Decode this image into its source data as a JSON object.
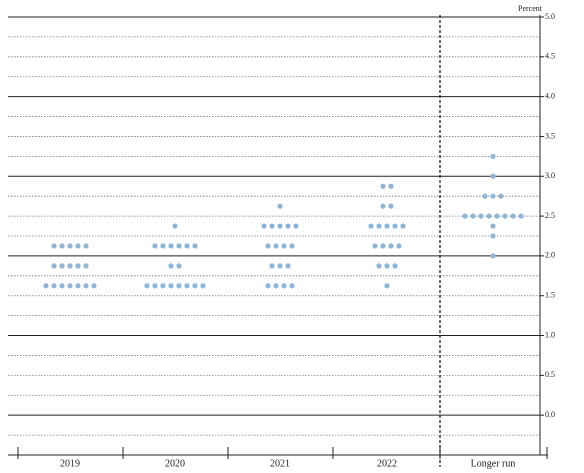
{
  "chart_data": {
    "type": "dot",
    "y_label": "Percent",
    "categories": [
      "2019",
      "2020",
      "2021",
      "2022",
      "Longer run"
    ],
    "dots": [
      [
        {
          "rate": 2.125,
          "count": 5
        },
        {
          "rate": 1.875,
          "count": 5
        },
        {
          "rate": 1.625,
          "count": 7
        }
      ],
      [
        {
          "rate": 2.375,
          "count": 1
        },
        {
          "rate": 2.125,
          "count": 6
        },
        {
          "rate": 1.875,
          "count": 2
        },
        {
          "rate": 1.625,
          "count": 8
        }
      ],
      [
        {
          "rate": 2.625,
          "count": 1
        },
        {
          "rate": 2.375,
          "count": 5
        },
        {
          "rate": 2.125,
          "count": 4
        },
        {
          "rate": 1.875,
          "count": 3
        },
        {
          "rate": 1.625,
          "count": 4
        }
      ],
      [
        {
          "rate": 2.875,
          "count": 2
        },
        {
          "rate": 2.625,
          "count": 2
        },
        {
          "rate": 2.375,
          "count": 5
        },
        {
          "rate": 2.125,
          "count": 4
        },
        {
          "rate": 1.875,
          "count": 3
        },
        {
          "rate": 1.625,
          "count": 1
        }
      ],
      [
        {
          "rate": 3.25,
          "count": 1
        },
        {
          "rate": 3.0,
          "count": 1
        },
        {
          "rate": 2.75,
          "count": 3
        },
        {
          "rate": 2.5,
          "count": 8
        },
        {
          "rate": 2.375,
          "count": 1
        },
        {
          "rate": 2.25,
          "count": 1
        },
        {
          "rate": 2.0,
          "count": 1
        }
      ]
    ],
    "color": "#8fb4d9",
    "ylim": [
      -0.5,
      5.0
    ],
    "yticks": [
      {
        "value": 0,
        "label": "0.0"
      },
      {
        "value": 0.5,
        "label": "0.5"
      },
      {
        "value": 1,
        "label": "1.0"
      },
      {
        "value": 1.5,
        "label": "1.5"
      },
      {
        "value": 2,
        "label": "2.0"
      },
      {
        "value": 2.5,
        "label": "2.5"
      },
      {
        "value": 3,
        "label": "3.0"
      },
      {
        "value": 3.5,
        "label": "3.5"
      },
      {
        "value": 4,
        "label": "4.0"
      },
      {
        "value": 4.5,
        "label": "4.5"
      },
      {
        "value": 5,
        "label": "5.0"
      }
    ],
    "grid_step": 0.25,
    "grid": true
  }
}
